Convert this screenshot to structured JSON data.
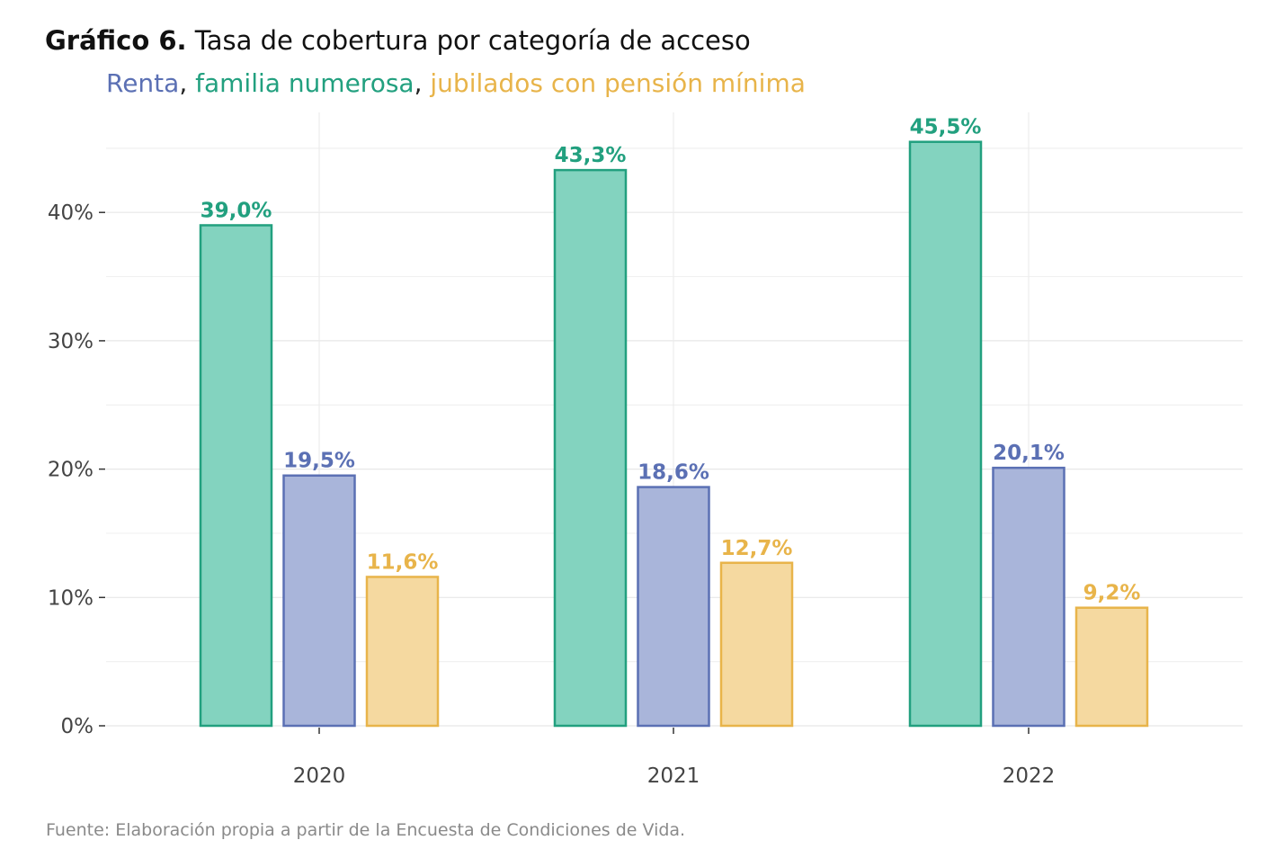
{
  "header": {
    "title_number": "Gráfico 6.",
    "title_text": "Tasa de cobertura por categoría de acceso",
    "subtitle_parts": [
      {
        "text": "Renta",
        "color": "#5b70b4"
      },
      {
        "text": ", ",
        "color": "#222222"
      },
      {
        "text": "familia numerosa",
        "color": "#22a07f"
      },
      {
        "text": ", ",
        "color": "#222222"
      },
      {
        "text": "jubilados con pensión mínima",
        "color": "#e8b44a"
      }
    ]
  },
  "footer": {
    "source": "Fuente: Elaboración propia a partir de la Encuesta de Condiciones de Vida."
  },
  "chart_data": {
    "type": "bar",
    "title": "Tasa de cobertura por categoría de acceso",
    "xlabel": "",
    "ylabel": "",
    "categories": [
      "2020",
      "2021",
      "2022"
    ],
    "ylim": [
      0,
      48
    ],
    "yticks": [
      0,
      10,
      20,
      30,
      40
    ],
    "ytick_labels": [
      "0%",
      "10%",
      "20%",
      "30%",
      "40%"
    ],
    "grid": true,
    "legend": "subtitle",
    "series": [
      {
        "name": "familia numerosa",
        "values": [
          39.0,
          43.3,
          45.5
        ],
        "labels": [
          "39,0%",
          "43,3%",
          "45,5%"
        ],
        "stroke": "#22a07f",
        "fill": "#83d3bf",
        "label_color": "#22a07f"
      },
      {
        "name": "Renta",
        "values": [
          19.5,
          18.6,
          20.1
        ],
        "labels": [
          "19,5%",
          "18,6%",
          "20,1%"
        ],
        "stroke": "#5b70b4",
        "fill": "#a9b5da",
        "label_color": "#5b70b4"
      },
      {
        "name": "jubilados con pensión mínima",
        "values": [
          11.6,
          12.7,
          9.2
        ],
        "labels": [
          "11,6%",
          "12,7%",
          "9,2%"
        ],
        "stroke": "#e8b44a",
        "fill": "#f5d9a0",
        "label_color": "#e8b44a"
      }
    ]
  }
}
